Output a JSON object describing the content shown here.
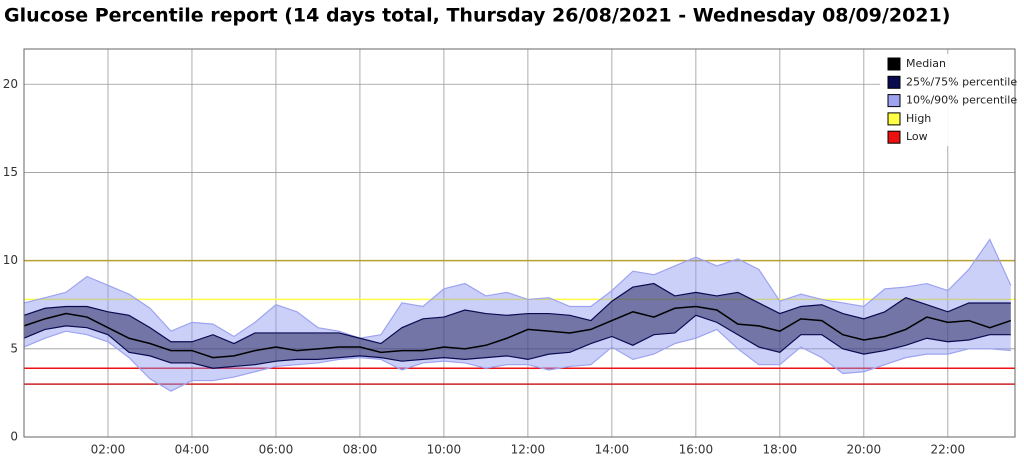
{
  "chart_data": {
    "type": "line",
    "title": "Glucose Percentile report (14 days total, Thursday 26/08/2021 - Wednesday 08/09/2021)",
    "x": [
      0,
      0.5,
      1,
      1.5,
      2,
      2.5,
      3,
      3.5,
      4,
      4.5,
      5,
      5.5,
      6,
      6.5,
      7,
      7.5,
      8,
      8.5,
      9,
      9.5,
      10,
      10.5,
      11,
      11.5,
      12,
      12.5,
      13,
      13.5,
      14,
      14.5,
      15,
      15.5,
      16,
      16.5,
      17,
      17.5,
      18,
      18.5,
      19,
      19.5,
      20,
      20.5,
      21,
      21.5,
      22,
      22.5,
      23,
      23.5
    ],
    "xlim": [
      0,
      23.6
    ],
    "xticks": [
      {
        "value": 2,
        "label": "02:00"
      },
      {
        "value": 4,
        "label": "04:00"
      },
      {
        "value": 6,
        "label": "06:00"
      },
      {
        "value": 8,
        "label": "08:00"
      },
      {
        "value": 10,
        "label": "10:00"
      },
      {
        "value": 12,
        "label": "12:00"
      },
      {
        "value": 14,
        "label": "14:00"
      },
      {
        "value": 16,
        "label": "16:00"
      },
      {
        "value": 18,
        "label": "18:00"
      },
      {
        "value": 20,
        "label": "20:00"
      },
      {
        "value": 22,
        "label": "22:00"
      }
    ],
    "ylim": [
      0,
      22
    ],
    "yticks": [
      0,
      5,
      10,
      15,
      20
    ],
    "grid": true,
    "legend": "top-right",
    "series": [
      {
        "name": "Median",
        "color": "#000000",
        "values": [
          6.3,
          6.7,
          7.0,
          6.8,
          6.2,
          5.6,
          5.3,
          4.9,
          4.9,
          4.5,
          4.6,
          4.9,
          5.1,
          4.9,
          5.0,
          5.1,
          5.1,
          4.8,
          4.9,
          4.9,
          5.1,
          5.0,
          5.2,
          5.6,
          6.1,
          6.0,
          5.9,
          6.1,
          6.6,
          7.1,
          6.8,
          7.3,
          7.4,
          7.2,
          6.4,
          6.3,
          6.0,
          6.7,
          6.6,
          5.8,
          5.5,
          5.7,
          6.1,
          6.8,
          6.5,
          6.6,
          6.2,
          6.6
        ]
      },
      {
        "name": "25%/75% percentile",
        "color": "#0a0a50",
        "lower": [
          5.6,
          6.1,
          6.3,
          6.2,
          5.8,
          4.8,
          4.6,
          4.2,
          4.2,
          3.9,
          4.0,
          4.1,
          4.3,
          4.4,
          4.4,
          4.5,
          4.6,
          4.5,
          4.3,
          4.4,
          4.5,
          4.4,
          4.5,
          4.6,
          4.4,
          4.7,
          4.8,
          5.3,
          5.7,
          5.2,
          5.8,
          5.9,
          6.9,
          6.5,
          5.8,
          5.1,
          4.8,
          5.8,
          5.8,
          5.0,
          4.7,
          4.9,
          5.2,
          5.6,
          5.4,
          5.5,
          5.8,
          5.8
        ],
        "upper": [
          6.9,
          7.3,
          7.4,
          7.4,
          7.1,
          6.9,
          6.2,
          5.4,
          5.4,
          5.8,
          5.3,
          5.9,
          5.9,
          5.9,
          5.9,
          5.9,
          5.6,
          5.3,
          6.2,
          6.7,
          6.8,
          7.2,
          7.0,
          6.9,
          7.0,
          7.0,
          6.9,
          6.6,
          7.7,
          8.5,
          8.7,
          8.0,
          8.2,
          8.0,
          8.2,
          7.6,
          7.0,
          7.4,
          7.5,
          7.0,
          6.7,
          7.1,
          7.9,
          7.5,
          7.1,
          7.6,
          7.6,
          7.6
        ]
      },
      {
        "name": "10%/90% percentile",
        "color": "#9da3f0",
        "lower": [
          5.1,
          5.6,
          6.0,
          5.8,
          5.4,
          4.5,
          3.3,
          2.6,
          3.2,
          3.2,
          3.4,
          3.7,
          4.0,
          4.1,
          4.2,
          4.4,
          4.5,
          4.4,
          3.8,
          4.2,
          4.3,
          4.2,
          3.9,
          4.1,
          4.1,
          3.8,
          4.0,
          4.1,
          5.1,
          4.4,
          4.7,
          5.3,
          5.6,
          6.1,
          5.0,
          4.1,
          4.1,
          5.1,
          4.5,
          3.6,
          3.7,
          4.1,
          4.5,
          4.7,
          4.7,
          5.0,
          5.0,
          4.9
        ],
        "upper": [
          7.6,
          7.9,
          8.2,
          9.1,
          8.6,
          8.1,
          7.3,
          6.0,
          6.5,
          6.4,
          5.7,
          6.5,
          7.5,
          7.1,
          6.2,
          6.0,
          5.6,
          5.8,
          7.6,
          7.4,
          8.4,
          8.7,
          8.0,
          8.2,
          7.8,
          7.9,
          7.4,
          7.4,
          8.3,
          9.4,
          9.2,
          9.7,
          10.2,
          9.7,
          10.1,
          9.5,
          7.7,
          8.1,
          7.8,
          7.6,
          7.4,
          8.4,
          8.5,
          8.7,
          8.3,
          9.5,
          11.2,
          8.6
        ]
      },
      {
        "name": "High",
        "color": "#ffff44",
        "levels": [
          7.8,
          10
        ],
        "level_colors": [
          "#ffff44",
          "#b8a030"
        ]
      },
      {
        "name": "Low",
        "color": "#ee1111",
        "levels": [
          3.9,
          3.0
        ],
        "level_colors": [
          "#ee1111",
          "#cc2222"
        ]
      }
    ]
  }
}
